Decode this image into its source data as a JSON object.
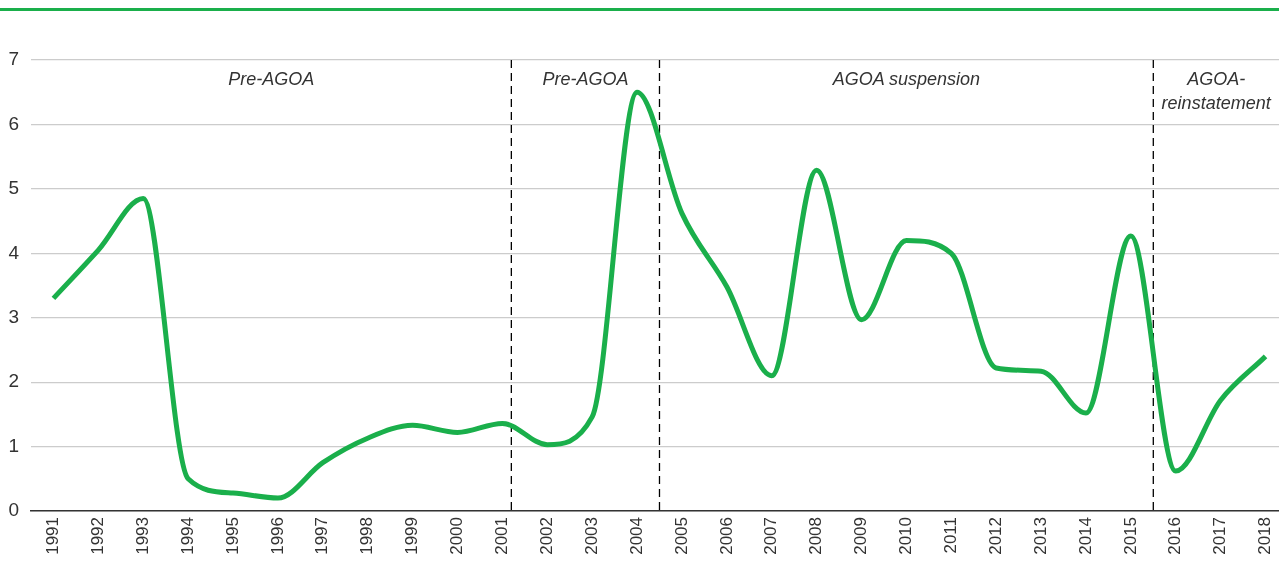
{
  "chart_data": {
    "type": "line",
    "x": [
      1991,
      1992,
      1993,
      1994,
      1995,
      1996,
      1997,
      1998,
      1999,
      2000,
      2001,
      2002,
      2003,
      2004,
      2005,
      2006,
      2007,
      2008,
      2009,
      2010,
      2011,
      2012,
      2013,
      2014,
      2015,
      2016,
      2017,
      2018
    ],
    "series": [
      {
        "color": "#1aaf4b",
        "values": [
          3.3,
          4.05,
          4.85,
          0.5,
          0.28,
          0.2,
          0.75,
          1.13,
          1.33,
          1.22,
          1.36,
          1.03,
          1.46,
          6.5,
          4.62,
          3.48,
          2.1,
          5.29,
          2.97,
          4.2,
          4.0,
          2.22,
          2.17,
          1.52,
          4.27,
          0.62,
          1.72,
          2.4
        ]
      }
    ],
    "xlim": [
      1990.5,
      2018.3
    ],
    "xticks": [
      1991,
      1992,
      1993,
      1994,
      1995,
      1996,
      1997,
      1998,
      1999,
      2000,
      2001,
      2002,
      2003,
      2004,
      2005,
      2006,
      2007,
      2008,
      2009,
      2010,
      2011,
      2012,
      2013,
      2014,
      2015,
      2016,
      2017,
      2018
    ],
    "ylim": [
      0,
      7
    ],
    "yticks": [
      0,
      1,
      2,
      3,
      4,
      5,
      6,
      7
    ],
    "grid": "y",
    "legend": false,
    "marker": "none",
    "line_style": "solid",
    "ref_lines": [
      {
        "axis": "x",
        "value": 2001.2,
        "color": "#000000",
        "line_style": "dashed"
      },
      {
        "axis": "x",
        "value": 2004.5,
        "color": "#000000",
        "line_style": "dashed"
      },
      {
        "axis": "x",
        "value": 2015.5,
        "color": "#000000",
        "line_style": "dashed"
      }
    ],
    "annotations": [
      "Pre-AGOA",
      "Pre-AGOA",
      "AGOA suspension",
      "AGOA-reinstatement"
    ]
  }
}
